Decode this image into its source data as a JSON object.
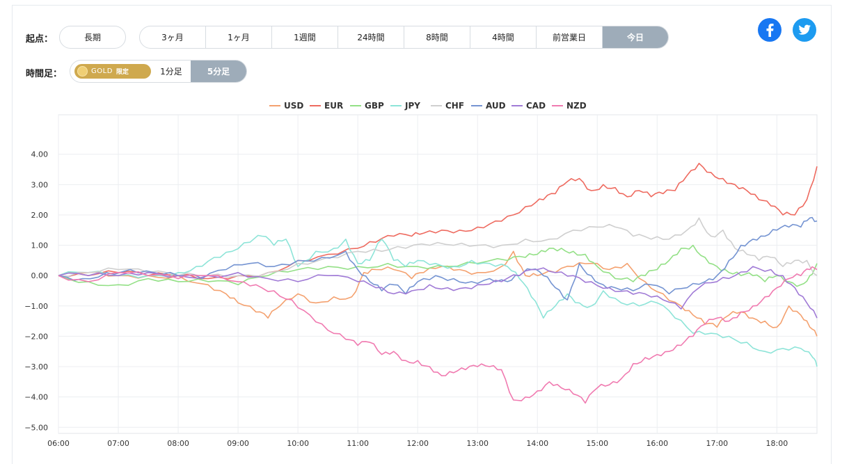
{
  "controls": {
    "origin_label": "起点：",
    "long_term": "長期",
    "periods": [
      "3ヶ月",
      "1ヶ月",
      "1週間",
      "24時間",
      "8時間",
      "4時間",
      "前営業日",
      "今日"
    ],
    "active_period": "今日",
    "timeframe_label": "時間足：",
    "gold_text": "GOLD",
    "gold_limited": "限定",
    "timeframes": [
      "1分足",
      "5分足"
    ],
    "active_timeframe": "5分足"
  },
  "social": {
    "facebook_icon": "facebook-icon",
    "twitter_icon": "twitter-icon",
    "facebook_color": "#1877f2",
    "twitter_color": "#1d9bf0"
  },
  "chart_data": {
    "type": "line",
    "title": "",
    "xlabel": "",
    "ylabel": "",
    "x_ticks": [
      "06:00",
      "07:00",
      "08:00",
      "09:00",
      "10:00",
      "11:00",
      "12:00",
      "13:00",
      "14:00",
      "15:00",
      "16:00",
      "17:00",
      "18:00"
    ],
    "y_ticks": [
      "4.00",
      "3.00",
      "2.00",
      "1.00",
      "0.00",
      "−1.00",
      "−2.00",
      "−3.00",
      "−4.00",
      "−5.00"
    ],
    "ylim": [
      -5.2,
      5.3
    ],
    "xlim_hours": [
      6.0,
      18.67
    ],
    "grid": true,
    "legend_position": "top-center",
    "series": [
      {
        "name": "USD",
        "color": "#f4a16f",
        "x": [
          6.0,
          6.5,
          7.0,
          7.5,
          8.0,
          8.5,
          8.8,
          9.0,
          9.3,
          9.5,
          9.7,
          10.0,
          10.3,
          10.6,
          10.9,
          11.1,
          11.3,
          11.6,
          11.9,
          12.1,
          12.4,
          12.7,
          13.0,
          13.4,
          13.6,
          13.8,
          14.0,
          14.3,
          14.6,
          14.9,
          15.2,
          15.5,
          15.8,
          16.1,
          16.4,
          16.6,
          16.8,
          17.0,
          17.2,
          17.4,
          17.6,
          17.8,
          18.0,
          18.2,
          18.4,
          18.55,
          18.67
        ],
        "y": [
          0.0,
          0.1,
          0.0,
          0.0,
          0.0,
          -0.3,
          -0.6,
          -0.9,
          -1.2,
          -1.4,
          -1.0,
          -0.6,
          -0.9,
          -0.7,
          -0.7,
          0.1,
          0.2,
          0.2,
          -0.1,
          0.1,
          0.3,
          0.2,
          0.1,
          0.3,
          0.8,
          0.0,
          0.0,
          0.1,
          0.3,
          0.4,
          0.2,
          0.4,
          -0.2,
          -0.6,
          -1.0,
          -1.3,
          -1.6,
          -1.7,
          -1.3,
          -1.2,
          -1.4,
          -1.5,
          -1.7,
          -1.0,
          -1.3,
          -1.7,
          -2.0
        ]
      },
      {
        "name": "EUR",
        "color": "#ee6a5f",
        "x": [
          6.0,
          6.5,
          7.0,
          7.5,
          8.0,
          8.5,
          9.0,
          9.5,
          10.0,
          10.5,
          11.0,
          11.3,
          11.6,
          11.9,
          12.1,
          12.4,
          12.7,
          13.0,
          13.3,
          13.6,
          13.9,
          14.1,
          14.3,
          14.5,
          14.7,
          14.9,
          15.1,
          15.3,
          15.5,
          15.7,
          15.9,
          16.1,
          16.3,
          16.5,
          16.7,
          16.9,
          17.1,
          17.3,
          17.5,
          17.7,
          17.9,
          18.1,
          18.3,
          18.5,
          18.67
        ],
        "y": [
          0.0,
          0.0,
          0.1,
          0.0,
          0.0,
          -0.1,
          0.0,
          0.1,
          0.5,
          0.7,
          0.9,
          1.1,
          1.3,
          1.3,
          1.4,
          1.5,
          1.5,
          1.6,
          1.8,
          2.0,
          2.3,
          2.5,
          2.7,
          3.1,
          3.2,
          2.8,
          3.0,
          2.9,
          2.6,
          2.8,
          2.6,
          2.7,
          2.8,
          3.3,
          3.7,
          3.4,
          3.2,
          3.0,
          2.8,
          2.5,
          2.3,
          2.0,
          2.0,
          2.5,
          3.6
        ]
      },
      {
        "name": "GBP",
        "color": "#93e086",
        "x": [
          6.0,
          6.5,
          7.0,
          7.5,
          8.0,
          8.5,
          9.0,
          9.5,
          10.0,
          10.5,
          11.0,
          11.5,
          12.0,
          12.5,
          13.0,
          13.5,
          13.8,
          14.0,
          14.2,
          14.4,
          14.6,
          14.8,
          15.0,
          15.3,
          15.6,
          15.8,
          16.0,
          16.2,
          16.4,
          16.6,
          16.8,
          17.0,
          17.2,
          17.4,
          17.6,
          17.8,
          18.0,
          18.2,
          18.4,
          18.55,
          18.67
        ],
        "y": [
          0.0,
          -0.2,
          -0.3,
          -0.1,
          -0.2,
          -0.2,
          -0.3,
          0.0,
          0.2,
          0.3,
          0.3,
          0.4,
          0.3,
          0.3,
          0.4,
          0.5,
          0.6,
          0.7,
          0.9,
          0.9,
          0.8,
          0.7,
          0.3,
          -0.1,
          -0.2,
          0.0,
          0.2,
          0.5,
          0.9,
          1.0,
          0.6,
          0.3,
          0.1,
          0.0,
          0.0,
          -0.2,
          0.0,
          -0.2,
          -0.3,
          0.0,
          0.4
        ]
      },
      {
        "name": "JPY",
        "color": "#8de4d8",
        "x": [
          6.0,
          6.5,
          7.0,
          7.5,
          8.0,
          8.3,
          8.6,
          8.9,
          9.2,
          9.4,
          9.6,
          9.8,
          10.0,
          10.3,
          10.6,
          10.8,
          11.0,
          11.2,
          11.4,
          11.6,
          11.8,
          12.0,
          12.3,
          12.6,
          12.9,
          13.2,
          13.5,
          13.7,
          13.9,
          14.1,
          14.3,
          14.5,
          14.7,
          14.9,
          15.1,
          15.4,
          15.7,
          16.0,
          16.3,
          16.6,
          16.9,
          17.2,
          17.5,
          17.8,
          18.1,
          18.4,
          18.6,
          18.67
        ],
        "y": [
          0.0,
          0.1,
          0.0,
          0.0,
          0.1,
          0.3,
          0.6,
          0.8,
          1.1,
          1.3,
          1.0,
          1.2,
          0.3,
          0.8,
          0.9,
          1.2,
          0.4,
          0.5,
          1.2,
          0.5,
          0.3,
          0.5,
          0.4,
          0.3,
          0.5,
          0.4,
          0.3,
          -0.1,
          -0.7,
          -1.4,
          -1.0,
          -0.6,
          -0.9,
          -1.0,
          -0.5,
          -0.9,
          -1.0,
          -0.9,
          -1.4,
          -1.9,
          -1.9,
          -2.0,
          -2.2,
          -2.5,
          -2.4,
          -2.4,
          -2.7,
          -3.0
        ]
      },
      {
        "name": "CHF",
        "color": "#cfcfcf",
        "x": [
          6.0,
          6.5,
          7.0,
          7.5,
          8.0,
          8.5,
          9.0,
          9.5,
          10.0,
          10.5,
          11.0,
          11.4,
          11.8,
          12.2,
          12.6,
          13.0,
          13.4,
          13.8,
          14.2,
          14.6,
          15.0,
          15.3,
          15.6,
          15.9,
          16.2,
          16.5,
          16.7,
          16.9,
          17.1,
          17.3,
          17.5,
          17.7,
          17.9,
          18.1,
          18.3,
          18.5,
          18.67
        ],
        "y": [
          0.0,
          0.1,
          0.2,
          0.1,
          0.0,
          0.0,
          0.0,
          0.1,
          0.4,
          0.6,
          0.8,
          0.8,
          0.9,
          1.0,
          1.0,
          1.0,
          1.0,
          1.2,
          1.2,
          1.5,
          1.6,
          1.6,
          1.3,
          1.2,
          1.2,
          1.5,
          1.9,
          1.3,
          1.5,
          0.9,
          0.7,
          0.5,
          0.6,
          0.3,
          0.5,
          0.5,
          0.0
        ]
      },
      {
        "name": "AUD",
        "color": "#7594d2",
        "x": [
          6.0,
          6.4,
          6.8,
          7.2,
          7.6,
          8.0,
          8.4,
          8.8,
          9.2,
          9.6,
          10.0,
          10.4,
          10.8,
          11.0,
          11.2,
          11.4,
          11.6,
          11.8,
          12.0,
          12.3,
          12.6,
          12.9,
          13.2,
          13.5,
          13.7,
          13.9,
          14.1,
          14.3,
          14.5,
          14.7,
          14.9,
          15.1,
          15.3,
          15.6,
          15.9,
          16.2,
          16.5,
          16.8,
          17.0,
          17.2,
          17.4,
          17.6,
          17.8,
          18.0,
          18.2,
          18.4,
          18.55,
          18.67
        ],
        "y": [
          0.0,
          -0.1,
          0.1,
          0.2,
          0.1,
          0.0,
          -0.1,
          0.2,
          0.4,
          0.3,
          0.5,
          0.6,
          0.8,
          0.2,
          -0.2,
          -0.5,
          -0.3,
          -0.6,
          -0.2,
          0.0,
          -0.1,
          -0.2,
          -0.1,
          -0.2,
          0.0,
          0.2,
          0.0,
          -0.4,
          -0.8,
          0.4,
          0.0,
          -0.3,
          -0.4,
          -0.5,
          -0.3,
          -0.6,
          -0.4,
          -0.2,
          0.0,
          0.5,
          1.0,
          1.2,
          1.3,
          1.5,
          1.6,
          1.6,
          1.9,
          1.8
        ]
      },
      {
        "name": "CAD",
        "color": "#a07ad6",
        "x": [
          6.0,
          6.5,
          7.0,
          7.5,
          8.0,
          8.5,
          9.0,
          9.5,
          10.0,
          10.5,
          11.0,
          11.3,
          11.6,
          11.9,
          12.2,
          12.5,
          12.8,
          13.1,
          13.4,
          13.7,
          14.0,
          14.3,
          14.6,
          14.9,
          15.2,
          15.5,
          15.8,
          16.1,
          16.4,
          16.7,
          17.0,
          17.3,
          17.6,
          17.9,
          18.1,
          18.3,
          18.5,
          18.67
        ],
        "y": [
          0.0,
          0.0,
          0.0,
          0.1,
          0.0,
          0.0,
          0.1,
          -0.1,
          -0.2,
          0.0,
          -0.2,
          -0.4,
          -0.6,
          -0.5,
          -0.3,
          -0.4,
          -0.4,
          -0.3,
          -0.2,
          0.0,
          0.2,
          0.1,
          0.0,
          -0.2,
          -0.4,
          -0.5,
          -0.6,
          -0.8,
          -1.1,
          -0.4,
          -0.2,
          0.0,
          0.3,
          0.2,
          0.0,
          -0.4,
          -0.9,
          -1.4
        ]
      },
      {
        "name": "NZD",
        "color": "#f07ab0",
        "x": [
          6.0,
          6.5,
          7.0,
          7.5,
          8.0,
          8.5,
          9.0,
          9.3,
          9.6,
          9.9,
          10.2,
          10.5,
          10.8,
          11.0,
          11.2,
          11.4,
          11.6,
          11.8,
          12.0,
          12.2,
          12.4,
          12.6,
          12.8,
          13.0,
          13.2,
          13.4,
          13.6,
          13.8,
          14.0,
          14.2,
          14.4,
          14.6,
          14.8,
          15.0,
          15.2,
          15.4,
          15.6,
          15.8,
          16.0,
          16.2,
          16.4,
          16.6,
          16.8,
          17.0,
          17.2,
          17.4,
          17.6,
          17.8,
          18.0,
          18.2,
          18.4,
          18.55,
          18.67
        ],
        "y": [
          0.0,
          -0.2,
          0.1,
          0.0,
          -0.1,
          0.0,
          -0.2,
          -0.3,
          -0.5,
          -0.8,
          -1.3,
          -1.8,
          -2.1,
          -2.3,
          -2.2,
          -2.6,
          -2.5,
          -2.8,
          -2.8,
          -3.0,
          -3.3,
          -3.2,
          -3.1,
          -3.0,
          -3.0,
          -3.1,
          -4.1,
          -4.0,
          -3.8,
          -3.5,
          -3.7,
          -3.9,
          -4.2,
          -3.7,
          -3.6,
          -3.4,
          -2.9,
          -2.7,
          -2.6,
          -2.5,
          -2.3,
          -2.0,
          -1.6,
          -1.4,
          -1.5,
          -1.2,
          -1.0,
          -0.7,
          -0.4,
          -0.1,
          0.0,
          0.2,
          0.2
        ]
      }
    ]
  }
}
